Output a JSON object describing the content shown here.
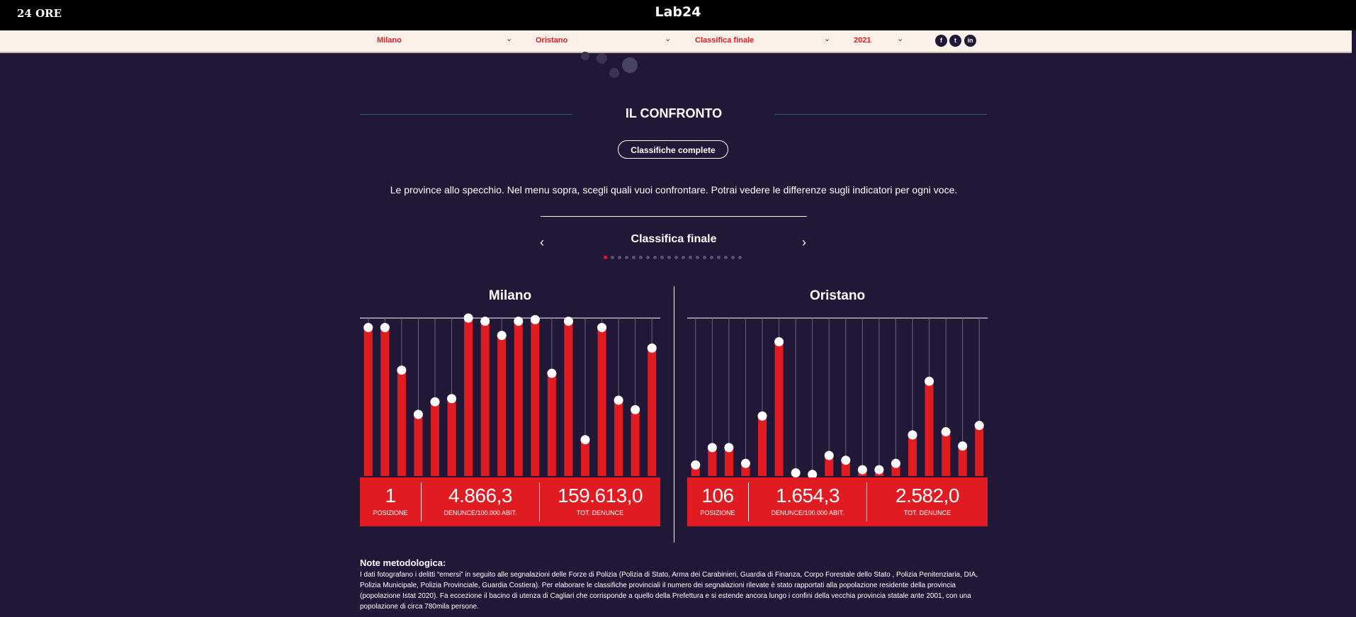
{
  "header": {
    "brand_left": "24 ORE",
    "brand_center": "Lab24"
  },
  "filters": [
    {
      "value": "Milano"
    },
    {
      "value": "Oristano"
    },
    {
      "value": "Classifica finale"
    },
    {
      "value": "2021"
    }
  ],
  "social": [
    "f",
    "t",
    "in"
  ],
  "section": {
    "title": "IL CONFRONTO",
    "button": "Classifiche complete",
    "intro": "Le province allo specchio. Nel menu sopra, scegli quali vuoi confrontare. Potrai vedere le differenze sugli indicatori per ogni voce."
  },
  "navigator": {
    "title": "Classifica finale",
    "prev": "‹",
    "next": "›",
    "page_count": 20,
    "active_page": 1
  },
  "panels": [
    {
      "name": "Milano",
      "stats": [
        {
          "value": "1",
          "label": "POSIZIONE"
        },
        {
          "value": "4.866,3",
          "label": "DENUNCE/100.000 ABIT."
        },
        {
          "value": "159.613,0",
          "label": "TOT. DENUNCE"
        }
      ]
    },
    {
      "name": "Oristano",
      "stats": [
        {
          "value": "106",
          "label": "POSIZIONE"
        },
        {
          "value": "1.654,3",
          "label": "DENUNCE/100.000 ABIT."
        },
        {
          "value": "2.582,0",
          "label": "TOT. DENUNCE"
        }
      ]
    }
  ],
  "chart_data": [
    {
      "type": "bar",
      "title": "Milano",
      "ylim": [
        0,
        100
      ],
      "values": [
        94,
        94,
        67,
        39,
        47,
        49,
        100,
        98,
        89,
        98,
        99,
        65,
        98,
        23,
        94,
        48,
        42,
        81
      ]
    },
    {
      "type": "bar",
      "title": "Oristano",
      "ylim": [
        0,
        100
      ],
      "values": [
        7,
        18,
        18,
        8,
        38,
        85,
        2,
        1,
        13,
        10,
        4,
        4,
        8,
        26,
        60,
        28,
        19,
        32
      ]
    }
  ],
  "notes": {
    "title": "Note metodologica:",
    "body": "I dati fotografano i delitti “emersi” in seguito alle segnalazioni delle Forze di Polizia (Polizia di Stato, Arma dei Carabinieri, Guardia di Finanza, Corpo Forestale dello Stato , Polizia Penitenziaria, DIA, Polizia Municipale, Polizia Provinciale, Guardia Costiera). Per elaborare le classifiche provinciali il numero dei segnalazioni rilevate è stato rapportati alla popolazione residente della provincia (popolazione Istat 2020). Fa eccezione il bacino di utenza di Cagliari che corrisponde a quello della Prefettura e si estende ancora lungo i confini della vecchia provincia statale ante 2001, con una popolazione di circa 780mila persone."
  }
}
